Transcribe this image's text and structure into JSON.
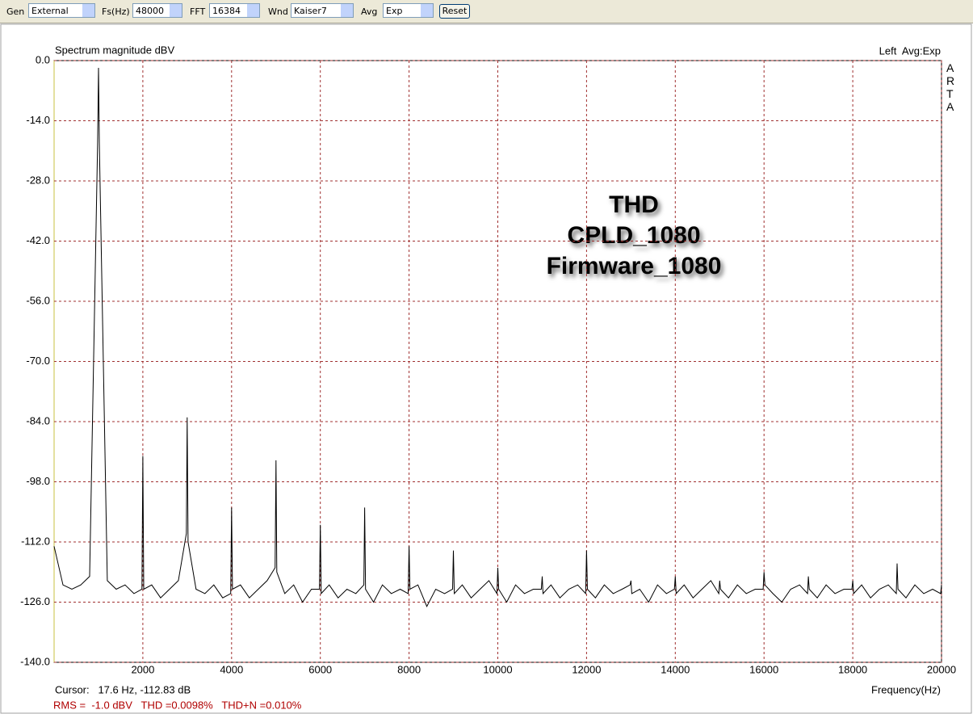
{
  "toolbar": {
    "gen_label": "Gen",
    "gen": "External",
    "fs_label": "Fs(Hz)",
    "fs": "48000",
    "fft_label": "FFT",
    "fft": "16384",
    "wnd_label": "Wnd",
    "wnd": "Kaiser7",
    "avg_label": "Avg",
    "avg": "Exp",
    "reset": "Reset"
  },
  "chart_data": {
    "type": "line",
    "title": "Spectrum magnitude dBV",
    "channel": "Left  Avg:Exp",
    "brand": "ARTA",
    "annotations": [
      "THD",
      "CPLD_1080",
      "Firmware_1080"
    ],
    "x_label": "Frequency(Hz)",
    "cursor": "Cursor:   17.6 Hz, -112.83 dB",
    "status": "RMS =  -1.0 dBV   THD =0.0098%   THD+N =0.010%",
    "color": "#000000",
    "x": [
      0,
      200,
      400,
      600,
      800,
      980,
      1000,
      1020,
      1200,
      1400,
      1600,
      1800,
      1980,
      2000,
      2020,
      2200,
      2400,
      2600,
      2800,
      2980,
      3000,
      3020,
      3200,
      3400,
      3600,
      3800,
      3980,
      4000,
      4020,
      4200,
      4400,
      4600,
      4800,
      4980,
      5000,
      5020,
      5200,
      5400,
      5600,
      5800,
      5980,
      6000,
      6020,
      6200,
      6400,
      6600,
      6800,
      6980,
      7000,
      7020,
      7200,
      7400,
      7600,
      7800,
      7980,
      8000,
      8020,
      8200,
      8400,
      8600,
      8800,
      8980,
      9000,
      9020,
      9200,
      9400,
      9600,
      9800,
      9980,
      10000,
      10020,
      10200,
      10400,
      10600,
      10800,
      10980,
      11000,
      11020,
      11200,
      11400,
      11600,
      11800,
      11980,
      12000,
      12020,
      12200,
      12400,
      12600,
      12800,
      12980,
      13000,
      13020,
      13200,
      13400,
      13600,
      13800,
      13980,
      14000,
      14020,
      14200,
      14400,
      14600,
      14800,
      14980,
      15000,
      15020,
      15200,
      15400,
      15600,
      15800,
      15980,
      16000,
      16020,
      16200,
      16400,
      16600,
      16800,
      16980,
      17000,
      17020,
      17200,
      17400,
      17600,
      17800,
      17980,
      18000,
      18020,
      18200,
      18400,
      18600,
      18800,
      18980,
      19000,
      19020,
      19200,
      19400,
      19600,
      19800,
      19980,
      20000
    ],
    "values": [
      -113,
      -122,
      -123,
      -122,
      -120,
      -19,
      -1.7,
      -19,
      -121,
      -123,
      -122,
      -124,
      -123,
      -92,
      -123,
      -122,
      -125,
      -123,
      -121,
      -110,
      -83,
      -112,
      -123,
      -124,
      -122,
      -125,
      -124,
      -104,
      -123,
      -122,
      -125,
      -123,
      -121,
      -118,
      -93,
      -119,
      -124,
      -122,
      -126,
      -123,
      -123,
      -108,
      -124,
      -122,
      -125,
      -123,
      -124,
      -122,
      -104,
      -123,
      -126,
      -122,
      -124,
      -123,
      -124,
      -113,
      -123,
      -122,
      -127,
      -123,
      -124,
      -123,
      -114,
      -124,
      -122,
      -125,
      -123,
      -121,
      -124,
      -118,
      -123,
      -126,
      -122,
      -124,
      -123,
      -123,
      -120,
      -124,
      -122,
      -125,
      -123,
      -122,
      -124,
      -114,
      -123,
      -125,
      -122,
      -124,
      -123,
      -122,
      -121,
      -124,
      -123,
      -126,
      -122,
      -124,
      -123,
      -120,
      -124,
      -122,
      -125,
      -123,
      -121,
      -124,
      -121,
      -123,
      -125,
      -122,
      -124,
      -123,
      -123,
      -119,
      -122,
      -124,
      -126,
      -123,
      -122,
      -124,
      -120,
      -123,
      -125,
      -122,
      -124,
      -123,
      -123,
      -121,
      -124,
      -122,
      -125,
      -123,
      -122,
      -124,
      -117,
      -123,
      -125,
      -122,
      -124,
      -123,
      -124,
      -122
    ],
    "xlim": [
      0,
      20000
    ],
    "xticks": [
      2000,
      4000,
      6000,
      8000,
      10000,
      12000,
      14000,
      16000,
      18000,
      20000
    ],
    "ylim": [
      -140,
      0
    ],
    "yticks": [
      {
        "value": 0,
        "label": "0.0"
      },
      {
        "value": -14,
        "label": "-14.0"
      },
      {
        "value": -28,
        "label": "-28.0"
      },
      {
        "value": -42,
        "label": "-42.0"
      },
      {
        "value": -56,
        "label": "-56.0"
      },
      {
        "value": -70,
        "label": "-70.0"
      },
      {
        "value": -84,
        "label": "-84.0"
      },
      {
        "value": -98,
        "label": "-98.0"
      },
      {
        "value": -112,
        "label": "-112.0"
      },
      {
        "value": -126,
        "label": "-126.0"
      },
      {
        "value": -140,
        "label": "-140.0"
      }
    ],
    "grid": true
  }
}
